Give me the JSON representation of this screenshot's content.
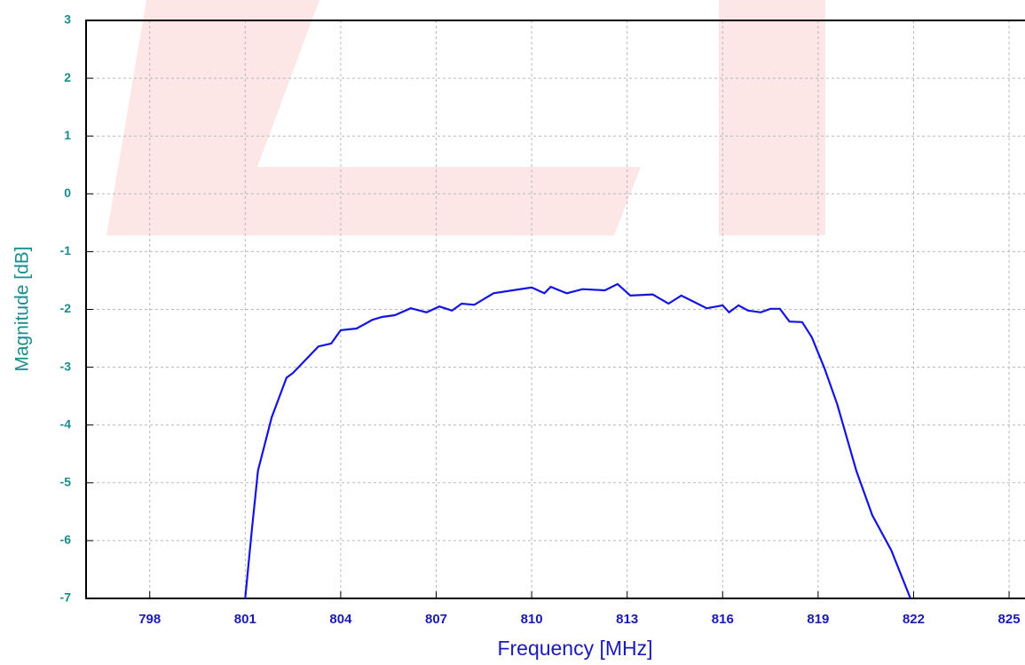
{
  "chart_data": {
    "type": "line",
    "xlabel": "Frequency [MHz]",
    "ylabel": "Magnitude [dB]",
    "xlim": [
      796,
      825.5
    ],
    "ylim": [
      -7,
      3
    ],
    "xticks": [
      798,
      801,
      804,
      807,
      810,
      813,
      816,
      819,
      822,
      825
    ],
    "yticks": [
      -7,
      -6,
      -5,
      -4,
      -3,
      -2,
      -1,
      0,
      1,
      2,
      3
    ],
    "grid": true,
    "series": [
      {
        "color": "#1414e0",
        "x": [
          801.0,
          801.2,
          801.4,
          801.83,
          802.3,
          802.5,
          802.9,
          803.3,
          803.7,
          804.0,
          804.5,
          805.0,
          805.3,
          805.7,
          806.2,
          806.7,
          807.1,
          807.5,
          807.8,
          808.2,
          808.8,
          809.4,
          810.0,
          810.4,
          810.6,
          811.1,
          811.6,
          812.3,
          812.7,
          813.1,
          813.8,
          814.3,
          814.7,
          815.1,
          815.5,
          816.0,
          816.2,
          816.5,
          816.8,
          817.2,
          817.5,
          817.8,
          818.1,
          818.5,
          818.8,
          819.2,
          819.6,
          820.2,
          820.7,
          821.3,
          821.8,
          821.9
        ],
        "values": [
          -7,
          -5.86,
          -4.79,
          -3.87,
          -3.18,
          -3.1,
          -2.87,
          -2.64,
          -2.59,
          -2.36,
          -2.33,
          -2.18,
          -2.13,
          -2.1,
          -1.98,
          -2.05,
          -1.95,
          -2.02,
          -1.9,
          -1.92,
          -1.72,
          -1.67,
          -1.62,
          -1.72,
          -1.61,
          -1.72,
          -1.65,
          -1.67,
          -1.56,
          -1.76,
          -1.74,
          -1.9,
          -1.76,
          -1.87,
          -1.98,
          -1.93,
          -2.05,
          -1.93,
          -2.02,
          -2.05,
          -1.99,
          -1.99,
          -2.21,
          -2.22,
          -2.48,
          -3.02,
          -3.64,
          -4.79,
          -5.56,
          -6.17,
          -6.86,
          -7
        ]
      }
    ]
  }
}
